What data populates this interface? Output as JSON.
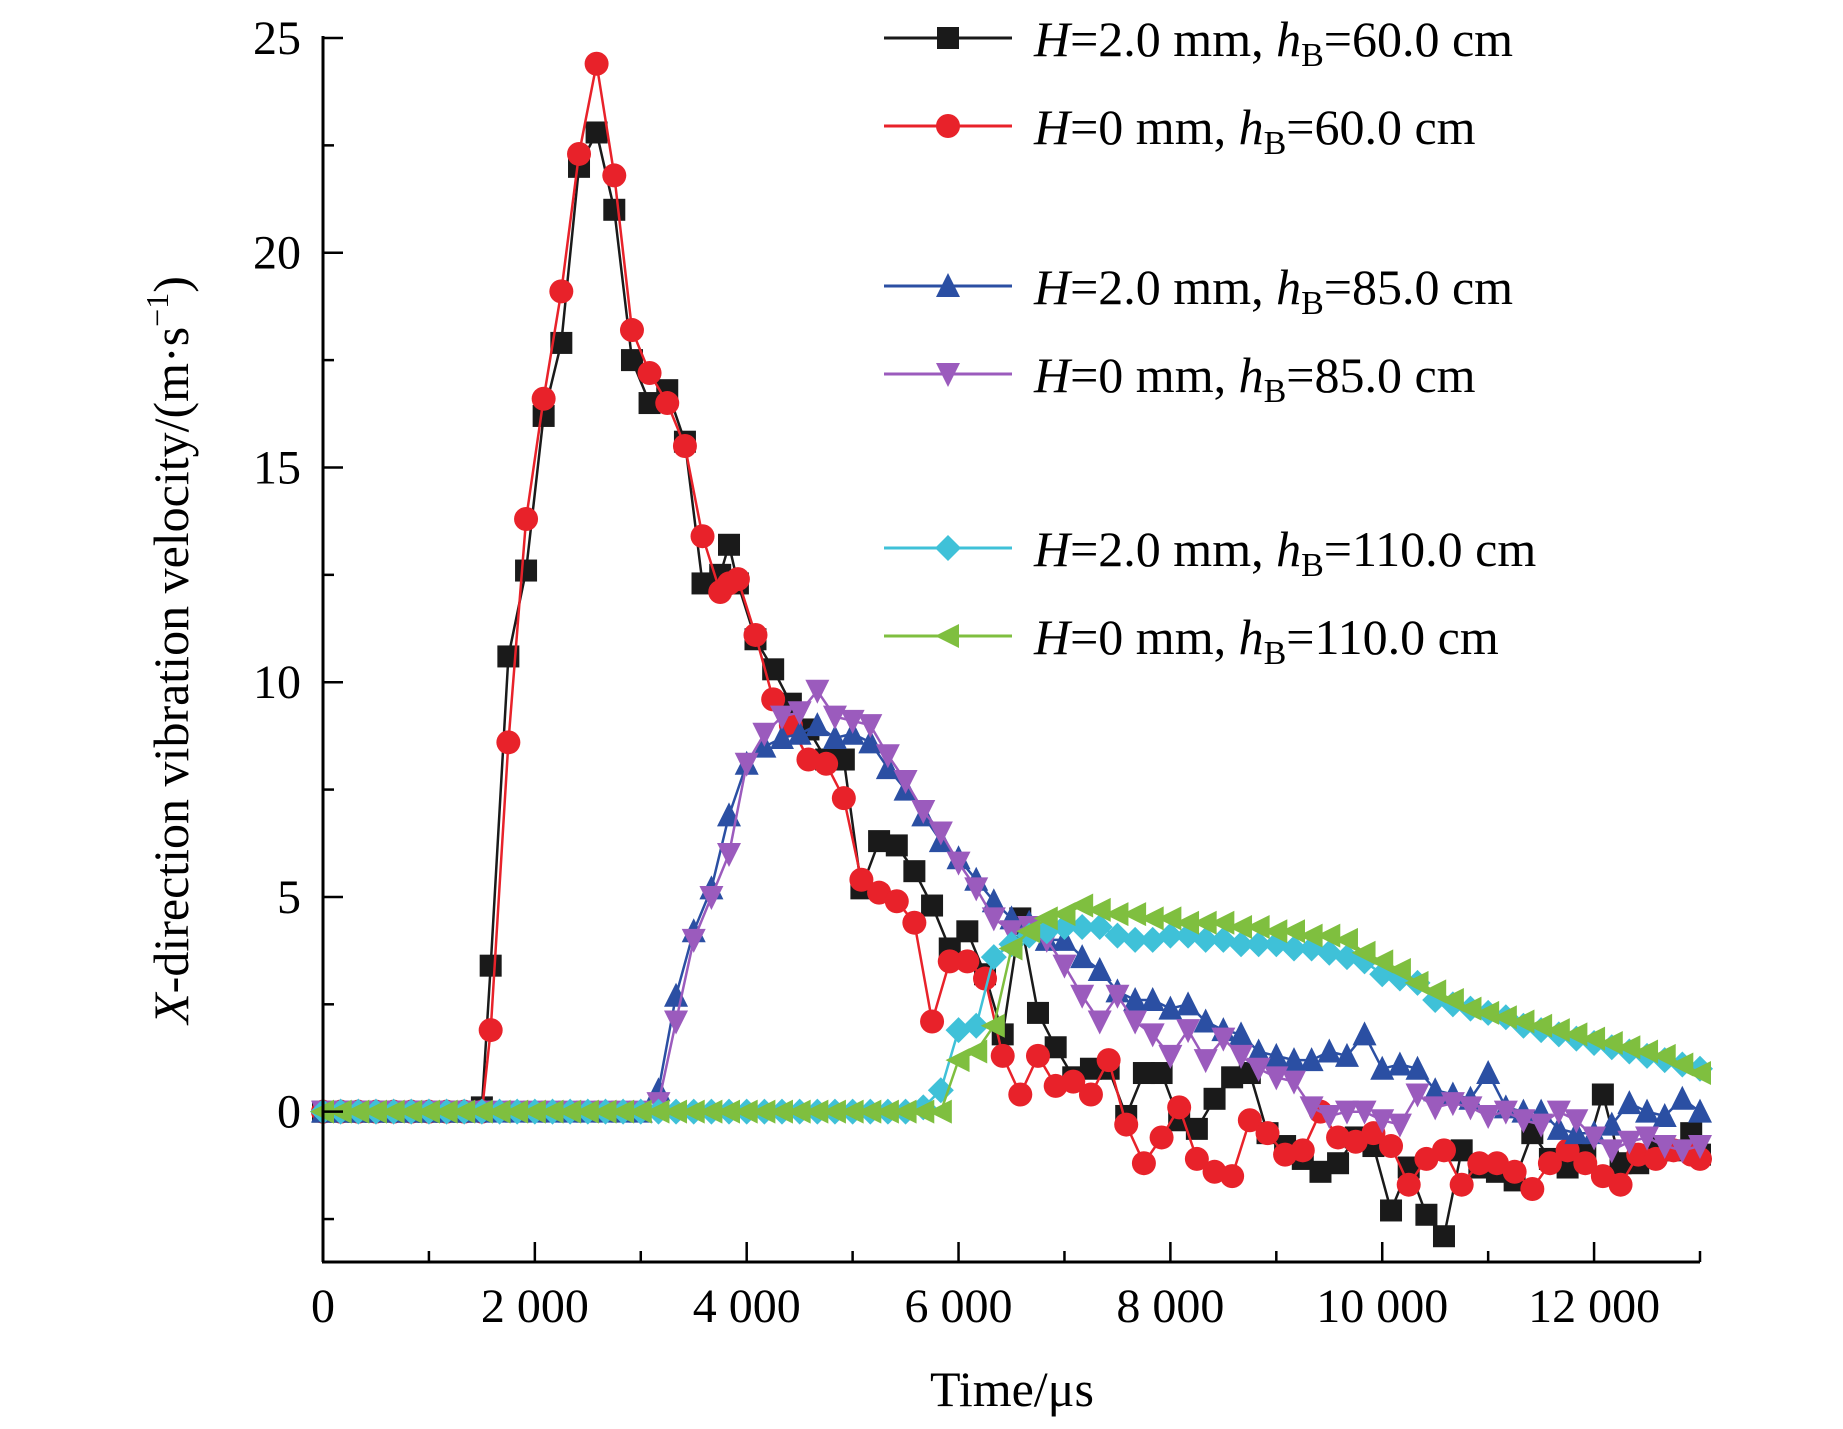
{
  "chart_data": {
    "type": "line",
    "xlabel": "Time/μs",
    "ylabel": {
      "prefix": "X",
      "rest": "-direction vibration velocity/(m·s",
      "sup": "−1",
      "suffix": ")"
    },
    "xlim": [
      0,
      13000
    ],
    "ylim": [
      -3.5,
      25
    ],
    "x_ticks": [
      0,
      2000,
      4000,
      6000,
      8000,
      10000,
      12000
    ],
    "x_tick_labels": [
      "0",
      "2 000",
      "4 000",
      "6 000",
      "8 000",
      "10 000",
      "12 000"
    ],
    "y_ticks": [
      0,
      5,
      10,
      15,
      20,
      25
    ],
    "y_tick_labels": [
      "0",
      "5",
      "10",
      "15",
      "20",
      "25"
    ],
    "grid": false,
    "legend_position": "top-right",
    "series": [
      {
        "legend": {
          "H": "2.0",
          "hB": "60.0"
        },
        "color": "#1a1a1a",
        "marker": "square",
        "x": [
          0,
          167,
          333,
          500,
          667,
          833,
          1000,
          1167,
          1333,
          1500,
          1583,
          1750,
          1917,
          2083,
          2250,
          2417,
          2583,
          2750,
          2917,
          3083,
          3250,
          3417,
          3583,
          3750,
          3833,
          3917,
          4083,
          4250,
          4417,
          4583,
          4750,
          4917,
          5083,
          5250,
          5417,
          5583,
          5750,
          5917,
          6083,
          6250,
          6417,
          6583,
          6750,
          6917,
          7083,
          7250,
          7417,
          7583,
          7750,
          7917,
          8083,
          8250,
          8417,
          8583,
          8750,
          8917,
          9083,
          9250,
          9417,
          9583,
          9750,
          9917,
          10083,
          10250,
          10417,
          10583,
          10750,
          10917,
          11083,
          11250,
          11417,
          11583,
          11750,
          11917,
          12083,
          12250,
          12417,
          12583,
          12750,
          12917,
          13000
        ],
        "y": [
          0,
          0,
          0,
          0,
          0,
          0,
          0,
          0,
          0,
          0.1,
          3.4,
          10.6,
          12.6,
          16.2,
          17.9,
          22.0,
          22.8,
          21.0,
          17.5,
          16.5,
          16.8,
          15.6,
          12.3,
          12.5,
          13.2,
          12.3,
          11.0,
          10.3,
          9.5,
          8.9,
          8.2,
          8.2,
          5.2,
          6.3,
          6.2,
          5.6,
          4.8,
          3.8,
          4.2,
          3.2,
          1.8,
          4.5,
          2.3,
          1.5,
          0.8,
          1.0,
          1.0,
          -0.1,
          0.9,
          0.9,
          -0.2,
          -0.4,
          0.3,
          0.8,
          0.9,
          -0.5,
          -0.8,
          -1.1,
          -1.4,
          -1.2,
          -0.6,
          -0.8,
          -2.3,
          -1.3,
          -2.4,
          -2.9,
          -0.9,
          -1.3,
          -1.4,
          -1.6,
          -0.5,
          -1.1,
          -1.3,
          -1.0,
          0.4,
          -1.2,
          -1.2,
          -0.8,
          -0.9,
          -0.5,
          -1.0
        ]
      },
      {
        "legend": {
          "H": "0",
          "hB": "60.0"
        },
        "color": "#e8222a",
        "marker": "circle",
        "x": [
          0,
          167,
          333,
          500,
          667,
          833,
          1000,
          1167,
          1333,
          1500,
          1583,
          1750,
          1917,
          2083,
          2250,
          2417,
          2583,
          2750,
          2917,
          3083,
          3250,
          3417,
          3583,
          3750,
          3833,
          3917,
          4083,
          4250,
          4417,
          4583,
          4750,
          4917,
          5083,
          5250,
          5417,
          5583,
          5750,
          5917,
          6083,
          6250,
          6417,
          6583,
          6750,
          6917,
          7083,
          7250,
          7417,
          7583,
          7750,
          7917,
          8083,
          8250,
          8417,
          8583,
          8750,
          8917,
          9083,
          9250,
          9417,
          9583,
          9750,
          9917,
          10083,
          10250,
          10417,
          10583,
          10750,
          10917,
          11083,
          11250,
          11417,
          11583,
          11750,
          11917,
          12083,
          12250,
          12417,
          12583,
          12750,
          12917,
          13000
        ],
        "y": [
          0,
          0,
          0,
          0,
          0,
          0,
          0,
          0,
          0,
          0,
          1.9,
          8.6,
          13.8,
          16.6,
          19.1,
          22.3,
          24.4,
          21.8,
          18.2,
          17.2,
          16.5,
          15.5,
          13.4,
          12.1,
          12.3,
          12.4,
          11.1,
          9.6,
          9.0,
          8.2,
          8.1,
          7.3,
          5.4,
          5.1,
          4.9,
          4.4,
          2.1,
          3.5,
          3.5,
          3.1,
          1.3,
          0.4,
          1.3,
          0.6,
          0.7,
          0.4,
          1.2,
          -0.3,
          -1.2,
          -0.6,
          0.1,
          -1.1,
          -1.4,
          -1.5,
          -0.2,
          -0.5,
          -1.0,
          -0.9,
          0.0,
          -0.6,
          -0.7,
          -0.5,
          -0.8,
          -1.7,
          -1.1,
          -0.9,
          -1.7,
          -1.2,
          -1.2,
          -1.4,
          -1.8,
          -1.2,
          -0.9,
          -1.2,
          -1.5,
          -1.7,
          -1.0,
          -1.1,
          -0.9,
          -1.0,
          -1.1
        ]
      },
      {
        "legend": {
          "H": "2.0",
          "hB": "85.0"
        },
        "color": "#2b4fa3",
        "marker": "triangle-up",
        "x": [
          0,
          167,
          333,
          500,
          667,
          833,
          1000,
          1167,
          1333,
          1500,
          1667,
          1833,
          2000,
          2167,
          2333,
          2500,
          2667,
          2833,
          3000,
          3167,
          3333,
          3500,
          3667,
          3833,
          4000,
          4167,
          4333,
          4500,
          4667,
          4833,
          5000,
          5167,
          5333,
          5500,
          5667,
          5833,
          6000,
          6167,
          6333,
          6500,
          6667,
          6833,
          7000,
          7167,
          7333,
          7500,
          7667,
          7833,
          8000,
          8167,
          8333,
          8500,
          8667,
          8833,
          9000,
          9167,
          9333,
          9500,
          9667,
          9833,
          10000,
          10167,
          10333,
          10500,
          10667,
          10833,
          11000,
          11167,
          11333,
          11500,
          11667,
          11833,
          12000,
          12167,
          12333,
          12500,
          12667,
          12833,
          13000
        ],
        "y": [
          0,
          0,
          0,
          0,
          0,
          0,
          0,
          0,
          0,
          0,
          0,
          0,
          0,
          0,
          0,
          0,
          0,
          0,
          0,
          0.5,
          2.7,
          4.2,
          5.2,
          6.9,
          8.1,
          8.5,
          8.7,
          8.8,
          9.0,
          8.7,
          8.8,
          8.6,
          8.0,
          7.5,
          6.9,
          6.3,
          5.9,
          5.4,
          4.9,
          4.5,
          4.4,
          4.0,
          4.0,
          3.6,
          3.3,
          2.8,
          2.6,
          2.6,
          2.4,
          2.5,
          2.1,
          1.9,
          1.8,
          1.4,
          1.3,
          1.2,
          1.2,
          1.4,
          1.3,
          1.8,
          1.0,
          1.1,
          1.0,
          0.5,
          0.4,
          0.3,
          0.9,
          0.1,
          0.0,
          0.0,
          -0.4,
          -0.5,
          -0.5,
          -0.3,
          0.2,
          0.0,
          -0.1,
          0.3,
          0.0
        ]
      },
      {
        "legend": {
          "H": "0",
          "hB": "85.0"
        },
        "color": "#9b5bbd",
        "marker": "triangle-down",
        "x": [
          0,
          167,
          333,
          500,
          667,
          833,
          1000,
          1167,
          1333,
          1500,
          1667,
          1833,
          2000,
          2167,
          2333,
          2500,
          2667,
          2833,
          3000,
          3167,
          3333,
          3500,
          3667,
          3833,
          4000,
          4167,
          4333,
          4500,
          4667,
          4833,
          5000,
          5167,
          5333,
          5500,
          5667,
          5833,
          6000,
          6167,
          6333,
          6500,
          6667,
          6833,
          7000,
          7167,
          7333,
          7500,
          7667,
          7833,
          8000,
          8167,
          8333,
          8500,
          8667,
          8833,
          9000,
          9167,
          9333,
          9500,
          9667,
          9833,
          10000,
          10167,
          10333,
          10500,
          10667,
          10833,
          11000,
          11167,
          11333,
          11500,
          11667,
          11833,
          12000,
          12167,
          12333,
          12500,
          12667,
          12833,
          13000
        ],
        "y": [
          0,
          0,
          0,
          0,
          0,
          0,
          0,
          0,
          0,
          0,
          0,
          0,
          0,
          0,
          0,
          0,
          0,
          0,
          0,
          0.2,
          2.1,
          4.0,
          5.0,
          6.0,
          8.1,
          8.8,
          9.2,
          9.3,
          9.8,
          9.2,
          9.1,
          9.0,
          8.3,
          7.7,
          7.0,
          6.5,
          5.8,
          5.2,
          4.5,
          4.2,
          4.3,
          4.0,
          3.4,
          2.7,
          2.1,
          2.7,
          2.1,
          1.8,
          1.3,
          1.9,
          1.2,
          1.7,
          1.3,
          1.0,
          0.8,
          0.7,
          0.1,
          -0.1,
          0.0,
          0.0,
          -0.2,
          -0.3,
          0.4,
          0.1,
          0.2,
          0.1,
          -0.1,
          0.0,
          -0.2,
          -0.3,
          0.0,
          -0.2,
          -0.6,
          -0.9,
          -0.7,
          -0.6,
          -0.8,
          -0.9,
          -0.8
        ]
      },
      {
        "legend": {
          "H": "2.0",
          "hB": "110.0"
        },
        "color": "#3fc1d8",
        "marker": "diamond",
        "x": [
          0,
          167,
          333,
          500,
          667,
          833,
          1000,
          1167,
          1333,
          1500,
          1667,
          1833,
          2000,
          2167,
          2333,
          2500,
          2667,
          2833,
          3000,
          3167,
          3333,
          3500,
          3667,
          3833,
          4000,
          4167,
          4333,
          4500,
          4667,
          4833,
          5000,
          5167,
          5333,
          5500,
          5667,
          5833,
          6000,
          6167,
          6333,
          6500,
          6667,
          6833,
          7000,
          7167,
          7333,
          7500,
          7667,
          7833,
          8000,
          8167,
          8333,
          8500,
          8667,
          8833,
          9000,
          9167,
          9333,
          9500,
          9667,
          9833,
          10000,
          10167,
          10333,
          10500,
          10667,
          10833,
          11000,
          11167,
          11333,
          11500,
          11667,
          11833,
          12000,
          12167,
          12333,
          12500,
          12667,
          12833,
          13000
        ],
        "y": [
          0,
          0,
          0,
          0,
          0,
          0,
          0,
          0,
          0,
          0,
          0,
          0,
          0,
          0,
          0,
          0,
          0,
          0,
          0,
          0,
          0,
          0,
          0,
          0,
          0,
          0,
          0,
          0,
          0,
          0,
          0,
          0,
          0,
          0,
          0.1,
          0.5,
          1.9,
          2.0,
          3.6,
          3.9,
          4.1,
          4.2,
          4.3,
          4.3,
          4.3,
          4.1,
          4.0,
          4.0,
          4.1,
          4.1,
          4.0,
          4.0,
          3.9,
          3.9,
          3.9,
          3.8,
          3.8,
          3.7,
          3.6,
          3.5,
          3.2,
          3.1,
          3.0,
          2.6,
          2.5,
          2.4,
          2.3,
          2.2,
          2.0,
          1.9,
          1.8,
          1.7,
          1.6,
          1.5,
          1.4,
          1.3,
          1.2,
          1.1,
          1.0
        ]
      },
      {
        "legend": {
          "H": "0",
          "hB": "110.0"
        },
        "color": "#7fbf3f",
        "marker": "triangle-left",
        "x": [
          0,
          167,
          333,
          500,
          667,
          833,
          1000,
          1167,
          1333,
          1500,
          1667,
          1833,
          2000,
          2167,
          2333,
          2500,
          2667,
          2833,
          3000,
          3167,
          3333,
          3500,
          3667,
          3833,
          4000,
          4167,
          4333,
          4500,
          4667,
          4833,
          5000,
          5167,
          5333,
          5500,
          5667,
          5833,
          6000,
          6167,
          6333,
          6500,
          6667,
          6833,
          7000,
          7167,
          7333,
          7500,
          7667,
          7833,
          8000,
          8167,
          8333,
          8500,
          8667,
          8833,
          9000,
          9167,
          9333,
          9500,
          9667,
          9833,
          10000,
          10167,
          10333,
          10500,
          10667,
          10833,
          11000,
          11167,
          11333,
          11500,
          11667,
          11833,
          12000,
          12167,
          12333,
          12500,
          12667,
          12833,
          13000
        ],
        "y": [
          0,
          0,
          0,
          0,
          0,
          0,
          0,
          0,
          0,
          0,
          0,
          0,
          0,
          0,
          0,
          0,
          0,
          0,
          0,
          0,
          0,
          0,
          0,
          0,
          0,
          0,
          0,
          0,
          0,
          0,
          0,
          0,
          0,
          0,
          0,
          0,
          1.2,
          1.4,
          2.0,
          3.8,
          4.2,
          4.5,
          4.6,
          4.8,
          4.7,
          4.6,
          4.6,
          4.5,
          4.5,
          4.4,
          4.4,
          4.4,
          4.3,
          4.3,
          4.2,
          4.2,
          4.1,
          4.1,
          4.0,
          3.7,
          3.5,
          3.3,
          3.0,
          2.8,
          2.6,
          2.4,
          2.3,
          2.2,
          2.1,
          2.0,
          1.9,
          1.8,
          1.7,
          1.6,
          1.5,
          1.4,
          1.3,
          1.1,
          0.9
        ]
      }
    ]
  }
}
